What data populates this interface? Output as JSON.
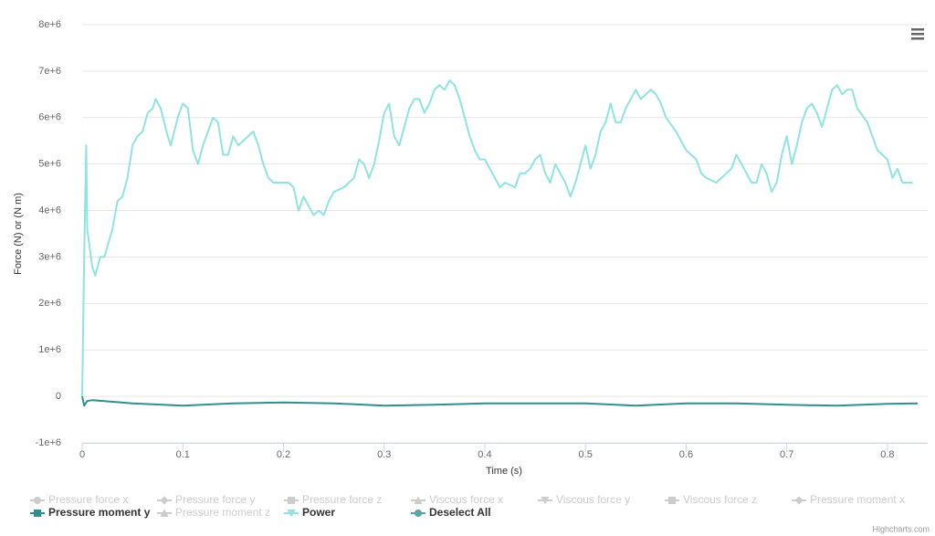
{
  "chart_data": {
    "type": "line",
    "x_label": "Time (s)",
    "y_label": "Force (N) or (N m)",
    "xlim": [
      0,
      0.84
    ],
    "xticks": [
      0,
      0.1,
      0.2,
      0.3,
      0.4,
      0.5,
      0.6,
      0.7,
      0.8
    ],
    "ylim": [
      -1000000,
      8000000
    ],
    "yticks": [
      {
        "value": -1000000,
        "label": "-1e+6"
      },
      0,
      {
        "value": 1000000,
        "label": "1e+6"
      },
      {
        "value": 2000000,
        "label": "2e+6"
      },
      {
        "value": 3000000,
        "label": "3e+6"
      },
      {
        "value": 4000000,
        "label": "4e+6"
      },
      {
        "value": 5000000,
        "label": "5e+6"
      },
      {
        "value": 6000000,
        "label": "6e+6"
      },
      {
        "value": 7000000,
        "label": "7e+6"
      },
      {
        "value": 8000000,
        "label": "8e+6"
      }
    ],
    "grid": true,
    "legend": "bottom",
    "credits": "Highcharts.com",
    "series": [
      {
        "name": "Pressure force x",
        "color": "#cccccc",
        "marker": "circle",
        "visible": false,
        "x": [],
        "values": []
      },
      {
        "name": "Pressure force y",
        "color": "#cccccc",
        "marker": "diamond",
        "visible": false,
        "x": [],
        "values": []
      },
      {
        "name": "Pressure force z",
        "color": "#cccccc",
        "marker": "square",
        "visible": false,
        "x": [],
        "values": []
      },
      {
        "name": "Viscous force x",
        "color": "#cccccc",
        "marker": "triangle",
        "visible": false,
        "x": [],
        "values": []
      },
      {
        "name": "Viscous force y",
        "color": "#cccccc",
        "marker": "triangle-down",
        "visible": false,
        "x": [],
        "values": []
      },
      {
        "name": "Viscous force z",
        "color": "#cccccc",
        "marker": "square",
        "visible": false,
        "x": [],
        "values": []
      },
      {
        "name": "Pressure moment x",
        "color": "#cccccc",
        "marker": "diamond",
        "visible": false,
        "x": [],
        "values": []
      },
      {
        "name": "Pressure moment y",
        "color": "#2f8f8f",
        "marker": "square",
        "visible": true,
        "x": [
          0,
          0.002,
          0.005,
          0.01,
          0.05,
          0.1,
          0.15,
          0.2,
          0.25,
          0.3,
          0.35,
          0.4,
          0.45,
          0.5,
          0.55,
          0.6,
          0.65,
          0.7,
          0.75,
          0.8,
          0.83
        ],
        "values": [
          0,
          -200000,
          -100000,
          -80000,
          -150000,
          -200000,
          -150000,
          -130000,
          -150000,
          -200000,
          -180000,
          -150000,
          -150000,
          -150000,
          -200000,
          -150000,
          -150000,
          -180000,
          -200000,
          -160000,
          -150000
        ]
      },
      {
        "name": "Pressure moment z",
        "color": "#cccccc",
        "marker": "triangle",
        "visible": false,
        "x": [],
        "values": []
      },
      {
        "name": "Power",
        "color": "#8fe3e0",
        "marker": "triangle-down",
        "visible": true,
        "x": [
          0,
          0.002,
          0.004,
          0.005,
          0.01,
          0.013,
          0.018,
          0.022,
          0.03,
          0.035,
          0.04,
          0.045,
          0.05,
          0.055,
          0.06,
          0.065,
          0.07,
          0.073,
          0.078,
          0.085,
          0.088,
          0.095,
          0.1,
          0.105,
          0.11,
          0.115,
          0.12,
          0.125,
          0.13,
          0.135,
          0.14,
          0.145,
          0.15,
          0.155,
          0.16,
          0.165,
          0.17,
          0.175,
          0.18,
          0.185,
          0.19,
          0.2,
          0.205,
          0.21,
          0.215,
          0.22,
          0.225,
          0.23,
          0.235,
          0.24,
          0.245,
          0.25,
          0.26,
          0.27,
          0.275,
          0.28,
          0.285,
          0.29,
          0.295,
          0.3,
          0.305,
          0.31,
          0.315,
          0.32,
          0.325,
          0.33,
          0.335,
          0.34,
          0.345,
          0.35,
          0.355,
          0.36,
          0.365,
          0.37,
          0.375,
          0.38,
          0.385,
          0.39,
          0.395,
          0.4,
          0.405,
          0.41,
          0.415,
          0.42,
          0.43,
          0.435,
          0.44,
          0.445,
          0.45,
          0.455,
          0.46,
          0.465,
          0.47,
          0.475,
          0.48,
          0.485,
          0.49,
          0.495,
          0.5,
          0.505,
          0.51,
          0.515,
          0.52,
          0.525,
          0.53,
          0.535,
          0.54,
          0.545,
          0.55,
          0.555,
          0.56,
          0.565,
          0.57,
          0.575,
          0.58,
          0.59,
          0.6,
          0.61,
          0.615,
          0.62,
          0.63,
          0.64,
          0.645,
          0.65,
          0.655,
          0.66,
          0.665,
          0.67,
          0.675,
          0.68,
          0.685,
          0.69,
          0.695,
          0.7,
          0.705,
          0.71,
          0.715,
          0.72,
          0.725,
          0.73,
          0.735,
          0.74,
          0.745,
          0.75,
          0.755,
          0.76,
          0.765,
          0.77,
          0.78,
          0.785,
          0.79,
          0.8,
          0.805,
          0.81,
          0.815,
          0.82,
          0.825
        ],
        "values": [
          0,
          3000000,
          5400000,
          3600000,
          2800000,
          2600000,
          3000000,
          3000000,
          3600000,
          4200000,
          4300000,
          4700000,
          5400000,
          5600000,
          5700000,
          6100000,
          6200000,
          6400000,
          6200000,
          5600000,
          5400000,
          6000000,
          6300000,
          6200000,
          5300000,
          5000000,
          5400000,
          5700000,
          6000000,
          5900000,
          5200000,
          5200000,
          5600000,
          5400000,
          5500000,
          5600000,
          5700000,
          5400000,
          5000000,
          4700000,
          4600000,
          4600000,
          4600000,
          4500000,
          4000000,
          4300000,
          4100000,
          3900000,
          4000000,
          3900000,
          4200000,
          4400000,
          4500000,
          4700000,
          5100000,
          5000000,
          4700000,
          5000000,
          5500000,
          6100000,
          6300000,
          5600000,
          5400000,
          5800000,
          6200000,
          6400000,
          6400000,
          6100000,
          6300000,
          6600000,
          6700000,
          6600000,
          6800000,
          6700000,
          6400000,
          6000000,
          5600000,
          5300000,
          5100000,
          5100000,
          4900000,
          4700000,
          4500000,
          4600000,
          4500000,
          4800000,
          4800000,
          4900000,
          5100000,
          5200000,
          4800000,
          4600000,
          5000000,
          4800000,
          4600000,
          4300000,
          4600000,
          5000000,
          5400000,
          4900000,
          5200000,
          5700000,
          5900000,
          6300000,
          5900000,
          5900000,
          6200000,
          6400000,
          6600000,
          6400000,
          6500000,
          6600000,
          6500000,
          6300000,
          6000000,
          5700000,
          5300000,
          5100000,
          4800000,
          4700000,
          4600000,
          4800000,
          4900000,
          5200000,
          5000000,
          4800000,
          4600000,
          4600000,
          5000000,
          4800000,
          4400000,
          4600000,
          5200000,
          5600000,
          5000000,
          5400000,
          5900000,
          6200000,
          6300000,
          6100000,
          5800000,
          6200000,
          6600000,
          6700000,
          6500000,
          6600000,
          6600000,
          6200000,
          5900000,
          5600000,
          5300000,
          5100000,
          4700000,
          4900000,
          4600000,
          4600000,
          4600000
        ]
      },
      {
        "name": "Deselect All",
        "color": "#5aa6a6",
        "marker": "circle",
        "visible": true,
        "x": [],
        "values": []
      }
    ]
  }
}
